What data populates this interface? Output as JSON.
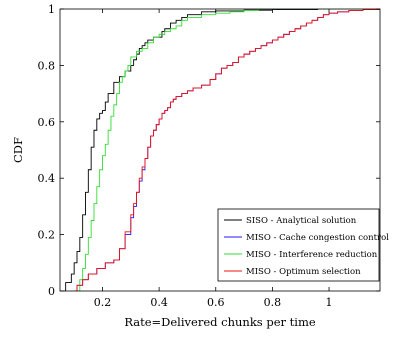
{
  "chart_data": {
    "type": "line",
    "xlabel": "Rate=Delivered chunks per time",
    "ylabel": "CDF",
    "xlim": [
      0.05,
      1.18
    ],
    "ylim": [
      0,
      1
    ],
    "x_ticks": [
      0.2,
      0.4,
      0.6,
      0.8,
      1
    ],
    "x_tick_labels": [
      "0.2",
      "0.4",
      "0.6",
      "0.8",
      "1"
    ],
    "y_ticks": [
      0,
      0.2,
      0.4,
      0.6,
      0.8,
      1
    ],
    "y_tick_labels": [
      "0",
      "0.2",
      "0.4",
      "0.6",
      "0.8",
      "1"
    ],
    "grid": false,
    "legend_position": "bottom-right",
    "series": [
      {
        "name": "SISO - Analytical solution",
        "color": "#000000",
        "x": [
          0.05,
          0.07,
          0.09,
          0.1,
          0.11,
          0.12,
          0.13,
          0.14,
          0.15,
          0.16,
          0.17,
          0.18,
          0.19,
          0.2,
          0.21,
          0.22,
          0.24,
          0.26,
          0.28,
          0.3,
          0.31,
          0.32,
          0.33,
          0.34,
          0.35,
          0.36,
          0.38,
          0.41,
          0.42,
          0.44,
          0.46,
          0.48,
          0.5,
          0.55,
          0.6,
          0.7,
          0.8,
          0.96
        ],
        "y": [
          0.0,
          0.03,
          0.06,
          0.1,
          0.14,
          0.19,
          0.27,
          0.35,
          0.43,
          0.51,
          0.57,
          0.61,
          0.63,
          0.64,
          0.67,
          0.7,
          0.74,
          0.76,
          0.78,
          0.8,
          0.82,
          0.84,
          0.86,
          0.87,
          0.88,
          0.89,
          0.9,
          0.92,
          0.93,
          0.95,
          0.96,
          0.97,
          0.98,
          0.99,
          0.993,
          0.996,
          0.998,
          1.0
        ]
      },
      {
        "name": "MISO - Cache congestion control",
        "color": "#1a1aff",
        "x": [
          0.1,
          0.11,
          0.13,
          0.15,
          0.18,
          0.21,
          0.24,
          0.26,
          0.28,
          0.3,
          0.31,
          0.32,
          0.33,
          0.34,
          0.35,
          0.36,
          0.37,
          0.38,
          0.39,
          0.4,
          0.41,
          0.42,
          0.43,
          0.44,
          0.45,
          0.46,
          0.48,
          0.5,
          0.52,
          0.55,
          0.58,
          0.6,
          0.62,
          0.64,
          0.66,
          0.68,
          0.7,
          0.72,
          0.74,
          0.76,
          0.78,
          0.8,
          0.82,
          0.84,
          0.86,
          0.88,
          0.9,
          0.92,
          0.94,
          0.96,
          0.98,
          1.0,
          1.03,
          1.07,
          1.12,
          1.18
        ],
        "y": [
          0.0,
          0.02,
          0.04,
          0.06,
          0.08,
          0.1,
          0.11,
          0.15,
          0.2,
          0.26,
          0.3,
          0.35,
          0.39,
          0.43,
          0.47,
          0.51,
          0.55,
          0.57,
          0.59,
          0.61,
          0.63,
          0.64,
          0.65,
          0.67,
          0.68,
          0.69,
          0.7,
          0.71,
          0.72,
          0.73,
          0.75,
          0.77,
          0.79,
          0.8,
          0.81,
          0.83,
          0.84,
          0.85,
          0.86,
          0.87,
          0.88,
          0.89,
          0.9,
          0.91,
          0.92,
          0.93,
          0.94,
          0.95,
          0.96,
          0.97,
          0.98,
          0.985,
          0.99,
          0.995,
          0.998,
          1.0
        ]
      },
      {
        "name": "MISO - Interference reduction",
        "color": "#33dd33",
        "x": [
          0.1,
          0.12,
          0.13,
          0.14,
          0.15,
          0.16,
          0.17,
          0.18,
          0.19,
          0.2,
          0.21,
          0.22,
          0.23,
          0.24,
          0.25,
          0.26,
          0.27,
          0.28,
          0.29,
          0.3,
          0.32,
          0.34,
          0.36,
          0.38,
          0.4,
          0.42,
          0.44,
          0.46,
          0.48,
          0.5,
          0.55,
          0.6,
          0.65,
          0.7,
          0.75
        ],
        "y": [
          0.0,
          0.04,
          0.08,
          0.13,
          0.19,
          0.25,
          0.31,
          0.37,
          0.43,
          0.48,
          0.52,
          0.57,
          0.62,
          0.66,
          0.7,
          0.74,
          0.76,
          0.78,
          0.8,
          0.83,
          0.85,
          0.86,
          0.88,
          0.9,
          0.91,
          0.92,
          0.93,
          0.94,
          0.96,
          0.97,
          0.98,
          0.985,
          0.99,
          0.995,
          1.0
        ]
      },
      {
        "name": "MISO - Optimum selection",
        "color": "#ee1111",
        "x": [
          0.1,
          0.11,
          0.13,
          0.15,
          0.18,
          0.21,
          0.24,
          0.26,
          0.28,
          0.3,
          0.31,
          0.32,
          0.33,
          0.34,
          0.35,
          0.36,
          0.37,
          0.38,
          0.39,
          0.4,
          0.41,
          0.42,
          0.43,
          0.44,
          0.45,
          0.46,
          0.48,
          0.5,
          0.52,
          0.55,
          0.58,
          0.6,
          0.62,
          0.64,
          0.66,
          0.68,
          0.7,
          0.72,
          0.74,
          0.76,
          0.78,
          0.8,
          0.82,
          0.84,
          0.86,
          0.88,
          0.9,
          0.92,
          0.94,
          0.96,
          0.98,
          1.0,
          1.03,
          1.07,
          1.12,
          1.18
        ],
        "y": [
          0.0,
          0.02,
          0.04,
          0.06,
          0.08,
          0.1,
          0.11,
          0.15,
          0.21,
          0.27,
          0.31,
          0.35,
          0.4,
          0.44,
          0.47,
          0.51,
          0.55,
          0.57,
          0.59,
          0.61,
          0.63,
          0.64,
          0.65,
          0.67,
          0.68,
          0.69,
          0.7,
          0.71,
          0.72,
          0.73,
          0.75,
          0.77,
          0.79,
          0.8,
          0.81,
          0.83,
          0.84,
          0.85,
          0.86,
          0.87,
          0.88,
          0.89,
          0.9,
          0.91,
          0.92,
          0.93,
          0.94,
          0.95,
          0.96,
          0.97,
          0.98,
          0.985,
          0.99,
          0.995,
          0.998,
          1.0
        ]
      }
    ]
  }
}
